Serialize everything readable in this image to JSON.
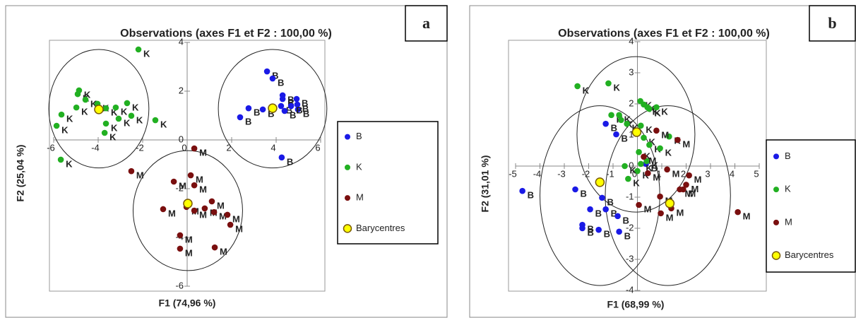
{
  "chart_data": [
    {
      "type": "scatter",
      "title": "Observations (axes F1 et F2 : 100,00 %)",
      "panel_label": "a",
      "xlabel": "F1 (74,96 %)",
      "ylabel": "F2 (25,04 %)",
      "xlim": [
        -6,
        6
      ],
      "ylim": [
        -6,
        4
      ],
      "xticks": [
        -6,
        -4,
        -2,
        0,
        2,
        4,
        6
      ],
      "yticks": [
        -6,
        -4,
        -2,
        0,
        2,
        4
      ],
      "legend": "right",
      "series": [
        {
          "name": "B",
          "color": "#1a1ae6",
          "marker": "circle",
          "x": [
            3.59,
            3.84,
            2.76,
            2.38,
            3.4,
            4.22,
            4.29,
            4.29,
            4.92,
            4.95,
            4.98,
            4.38,
            4.67,
            4.25
          ],
          "y": [
            2.81,
            2.52,
            1.3,
            0.93,
            1.25,
            1.39,
            1.68,
            1.83,
            1.68,
            1.45,
            1.25,
            1.19,
            1.39,
            -0.72
          ]
        },
        {
          "name": "K",
          "color": "#22b022",
          "marker": "circle",
          "x": [
            -4.86,
            -4.92,
            -4.57,
            -4.98,
            -4.03,
            -3.65,
            -3.21,
            -2.7,
            -2.51,
            -3.08,
            -3.65,
            -5.65,
            -5.87,
            -3.71,
            -1.43,
            -5.68,
            -2.19
          ],
          "y": [
            2.03,
            1.88,
            1.65,
            1.33,
            1.48,
            1.3,
            1.33,
            1.51,
            0.99,
            0.87,
            0.67,
            1.04,
            0.58,
            0.29,
            0.81,
            -0.81,
            3.71
          ]
        },
        {
          "name": "M",
          "color": "#7a0f0f",
          "marker": "circle",
          "x": [
            0.32,
            -2.51,
            -0.6,
            0.16,
            0.32,
            -1.08,
            -0.03,
            0.32,
            0.79,
            1.11,
            1.21,
            1.81,
            1.94,
            -0.32,
            -0.32,
            1.24
          ],
          "y": [
            -0.35,
            -1.28,
            -1.71,
            -1.45,
            -1.86,
            -2.84,
            -2.75,
            -2.9,
            -2.81,
            -2.52,
            -2.96,
            -3.07,
            -3.48,
            -3.91,
            -4.46,
            -4.41
          ]
        },
        {
          "name": "Barycentres",
          "color": "#ffff00",
          "edgecolor": "#7a5a00",
          "marker": "large-circle",
          "x": [
            3.84,
            -3.97,
            0.03
          ],
          "y": [
            1.3,
            1.25,
            -2.61
          ]
        }
      ],
      "ellipses": [
        {
          "cx": 3.84,
          "cy": 1.28,
          "rx": 2.44,
          "ry": 2.43
        },
        {
          "cx": -3.97,
          "cy": 1.28,
          "rx": 2.25,
          "ry": 2.43
        },
        {
          "cx": 0.03,
          "cy": -2.9,
          "rx": 2.46,
          "ry": 2.46
        }
      ]
    },
    {
      "type": "scatter",
      "title": "Observations (axes F1 et F2 : 100,00 %)",
      "panel_label": "b",
      "xlabel": "F1 (68,99 %)",
      "ylabel": "F2 (31,01 %)",
      "xlim": [
        -5,
        5
      ],
      "ylim": [
        -4,
        4
      ],
      "xticks": [
        -5,
        -4,
        -3,
        -2,
        -1,
        0,
        1,
        2,
        3,
        4,
        5
      ],
      "yticks": [
        -4,
        -3,
        -2,
        -1,
        0,
        1,
        2,
        3,
        4
      ],
      "legend": "right",
      "series": [
        {
          "name": "B",
          "color": "#1a1ae6",
          "marker": "circle",
          "x": [
            -4.72,
            -2.55,
            -1.45,
            -1.94,
            -1.3,
            -0.81,
            -0.75,
            -2.26,
            -2.26,
            -1.59,
            -1.3,
            -0.87,
            0.35
          ],
          "y": [
            -0.8,
            -0.75,
            -1.02,
            -1.39,
            -1.39,
            -1.61,
            -2.11,
            -1.89,
            -2.0,
            -2.05,
            1.36,
            1.02,
            0.07
          ]
        },
        {
          "name": "K",
          "color": "#22b022",
          "marker": "circle",
          "x": [
            -2.46,
            -1.19,
            -1.07,
            -0.75,
            -0.67,
            0.12,
            0.26,
            0.41,
            0.49,
            0.78,
            -0.43,
            0.14,
            0.26,
            0.49,
            0.06,
            0.14,
            0.38,
            0.0,
            -0.38,
            -0.52,
            1.3,
            0.93
          ],
          "y": [
            2.57,
            2.66,
            1.64,
            1.64,
            1.48,
            2.09,
            1.98,
            1.89,
            1.84,
            1.89,
            1.36,
            1.3,
            0.91,
            0.68,
            0.45,
            0.07,
            0.16,
            -0.16,
            -0.41,
            0.0,
            0.95,
            0.57
          ]
        },
        {
          "name": "M",
          "color": "#7a0f0f",
          "marker": "circle",
          "x": [
            0.26,
            0.78,
            1.65,
            1.22,
            0.43,
            2.12,
            1.74,
            1.88,
            0.93,
            1.39,
            0.96,
            0.06,
            4.12,
            2.0
          ],
          "y": [
            0.3,
            1.14,
            0.84,
            -0.11,
            -0.23,
            -0.3,
            -0.75,
            -0.75,
            -0.98,
            -1.36,
            -1.52,
            -1.25,
            -1.48,
            -0.6
          ]
        },
        {
          "name": "Barycentres",
          "color": "#ffff00",
          "edgecolor": "#7a5a00",
          "marker": "large-circle",
          "x": [
            -1.54,
            -0.03,
            1.33
          ],
          "y": [
            -0.52,
            1.09,
            -1.2
          ]
        }
      ],
      "ellipses": [
        {
          "cx": -1.54,
          "cy": -0.95,
          "rx": 2.46,
          "ry": 2.89
        },
        {
          "cx": -0.06,
          "cy": 1.02,
          "rx": 2.42,
          "ry": 2.5
        },
        {
          "cx": 1.25,
          "cy": -0.95,
          "rx": 2.57,
          "ry": 2.89
        }
      ]
    }
  ]
}
